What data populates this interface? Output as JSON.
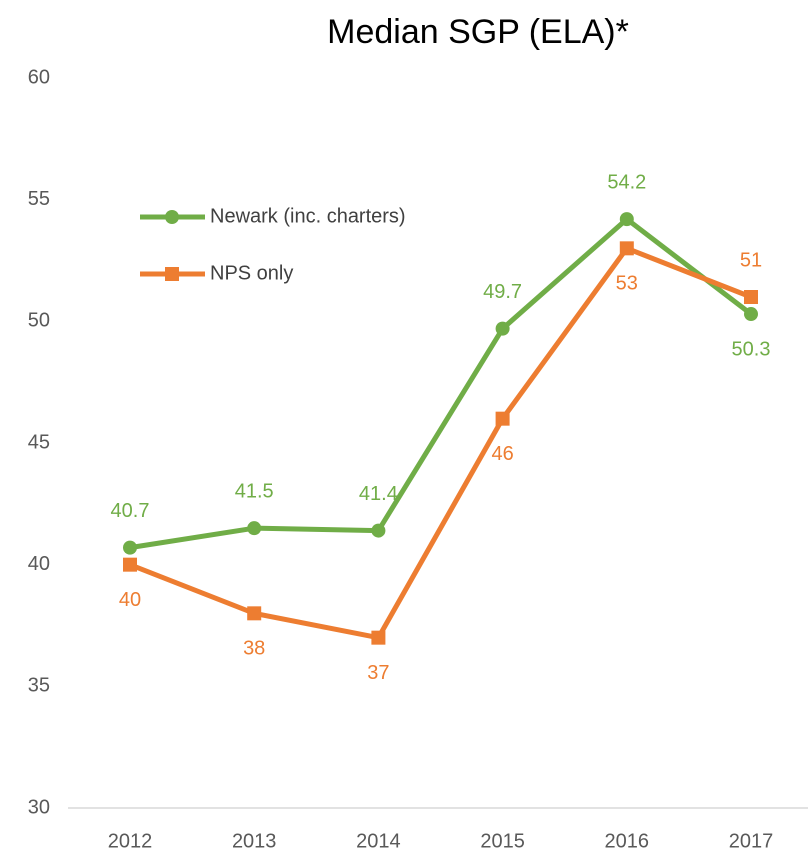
{
  "chart_data": {
    "type": "line",
    "title": "Median SGP (ELA)*",
    "categories": [
      "2012",
      "2013",
      "2014",
      "2015",
      "2016",
      "2017"
    ],
    "series": [
      {
        "name": "Newark (inc. charters)",
        "color": "#70ad47",
        "marker": "circle",
        "values": [
          40.7,
          41.5,
          41.4,
          49.7,
          54.2,
          50.3
        ]
      },
      {
        "name": "NPS only",
        "color": "#ed7d31",
        "marker": "square",
        "values": [
          40,
          38,
          37,
          46,
          53,
          51
        ]
      }
    ],
    "ylim": [
      30,
      60
    ],
    "yticks": [
      30,
      35,
      40,
      45,
      50,
      55,
      60
    ],
    "grid": false,
    "legend": "upper left"
  }
}
